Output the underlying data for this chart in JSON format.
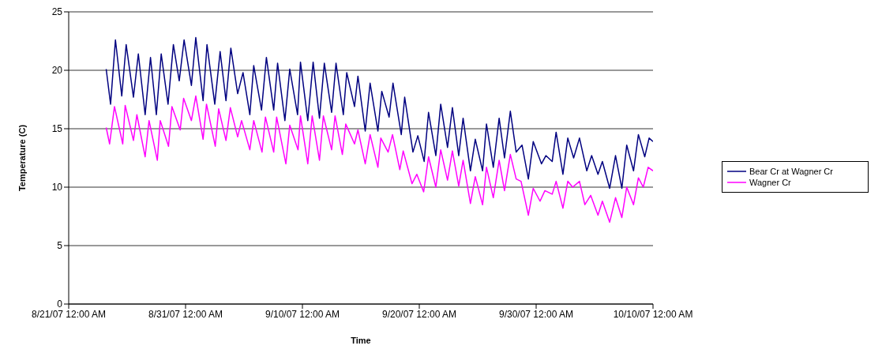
{
  "chart_data": {
    "type": "line",
    "xlabel": "Time",
    "ylabel": "Temperature (C)",
    "xlim": [
      "--08-21",
      "--10-10"
    ],
    "xticks": [
      {
        "value": "--08-21",
        "label": "8/21/07 12:00 AM"
      },
      {
        "value": "--08-31",
        "label": "8/31/07 12:00 AM"
      },
      {
        "value": "--09-10",
        "label": "9/10/07 12:00 AM"
      },
      {
        "value": "--09-20",
        "label": "9/20/07 12:00 AM"
      },
      {
        "value": "--09-30",
        "label": "9/30/07 12:00 AM"
      },
      {
        "value": "--10-10",
        "label": "10/10/07 12:00 AM"
      }
    ],
    "ylim": [
      0,
      25
    ],
    "yticks": [
      0,
      5,
      10,
      15,
      20,
      25
    ],
    "grid": "y",
    "legend": "right",
    "marker": "none",
    "line_style": "solid",
    "series": [
      {
        "name": "Bear Cr at Wagner Cr",
        "color": "#000080",
        "x": [
          "--08-24T05:00",
          "--08-24T14:00",
          "--08-25T00:00",
          "--08-25T13:00",
          "--08-25T22:00",
          "--08-26T13:00",
          "--08-26T23:00",
          "--08-27T13:00",
          "--08-28T00:00",
          "--08-28T12:00",
          "--08-28T22:00",
          "--08-29T12:00",
          "--08-29T23:00",
          "--08-30T11:00",
          "--08-30T21:00",
          "--08-31T12:00",
          "--08-31T21:00",
          "--09-01T12:00",
          "--09-01T20:00",
          "--09-02T12:00",
          "--09-02T23:00",
          "--09-03T11:00",
          "--09-03T21:00",
          "--09-04T11:00",
          "--09-04T22:00",
          "--09-05T12:00",
          "--09-05T20:00",
          "--09-06T12:00",
          "--09-06T22:00",
          "--09-07T13:00",
          "--09-07T21:00",
          "--09-08T12:00",
          "--09-08T22:00",
          "--09-09T14:00",
          "--09-09T20:00",
          "--09-10T11:00",
          "--09-10T22:00",
          "--09-11T11:00",
          "--09-11T21:00",
          "--09-12T12:00",
          "--09-12T21:00",
          "--09-13T12:00",
          "--09-13T19:00",
          "--09-14T11:00",
          "--09-14T18:00",
          "--09-15T09:00",
          "--09-15T19:00",
          "--09-16T11:00",
          "--09-16T19:00",
          "--09-17T10:00",
          "--09-17T18:00",
          "--09-18T11:00",
          "--09-18T18:00",
          "--09-19T11:00",
          "--09-19T21:00",
          "--09-20T10:00",
          "--09-20T19:00",
          "--09-21T10:00",
          "--09-21T20:00",
          "--09-22T10:00",
          "--09-22T20:00",
          "--09-23T09:00",
          "--09-23T18:00",
          "--09-24T09:00",
          "--09-24T19:00",
          "--09-25T10:00",
          "--09-25T18:00",
          "--09-26T08:00",
          "--09-26T20:00",
          "--09-27T07:00",
          "--09-27T19:00",
          "--09-28T07:00",
          "--09-28T19:00",
          "--09-29T08:00",
          "--09-29T18:00",
          "--09-30T11:00",
          "--09-30T20:00",
          "--10-01T09:00",
          "--10-01T17:00",
          "--10-02T07:00",
          "--10-02T17:00",
          "--10-03T05:00",
          "--10-03T17:00",
          "--10-04T08:00",
          "--10-04T18:00",
          "--10-05T07:00",
          "--10-05T16:00",
          "--10-06T07:00",
          "--10-06T19:00",
          "--10-07T08:00",
          "--10-07T18:00",
          "--10-08T08:00",
          "--10-08T18:00",
          "--10-09T07:00",
          "--10-09T16:00",
          "--10-10T00:00"
        ],
        "values": [
          20.1,
          17.1,
          22.6,
          17.8,
          22.2,
          17.7,
          21.4,
          16.2,
          21.1,
          16.2,
          21.4,
          17.1,
          22.2,
          19.1,
          22.6,
          18.7,
          22.8,
          17.4,
          22.2,
          17.1,
          21.6,
          17.4,
          21.9,
          18.0,
          19.8,
          16.2,
          20.4,
          16.6,
          21.1,
          16.6,
          20.6,
          15.7,
          20.1,
          16.2,
          20.7,
          15.7,
          20.7,
          15.9,
          20.6,
          16.4,
          20.6,
          16.2,
          19.8,
          16.9,
          19.5,
          14.8,
          18.9,
          14.8,
          18.2,
          16.0,
          18.9,
          14.5,
          17.7,
          13.0,
          14.4,
          12.2,
          16.4,
          12.7,
          17.1,
          13.4,
          16.8,
          12.7,
          15.9,
          11.4,
          14.1,
          11.4,
          15.4,
          11.7,
          15.9,
          12.5,
          16.5,
          13.0,
          13.6,
          10.7,
          13.9,
          12.0,
          12.7,
          12.2,
          14.7,
          11.1,
          14.2,
          12.5,
          14.2,
          11.4,
          12.7,
          11.1,
          12.2,
          9.9,
          12.7,
          9.9,
          13.6,
          11.4,
          14.5,
          12.6,
          14.2,
          13.9
        ]
      },
      {
        "name": "Wagner Cr",
        "color": "#ff00ff",
        "x": [
          "--08-24T05:00",
          "--08-24T12:00",
          "--08-24T22:00",
          "--08-25T15:00",
          "--08-25T20:00",
          "--08-26T13:00",
          "--08-26T20:00",
          "--08-27T13:00",
          "--08-27T21:00",
          "--08-28T14:00",
          "--08-28T20:00",
          "--08-29T13:00",
          "--08-29T20:00",
          "--08-30T13:00",
          "--08-30T20:00",
          "--08-31T12:00",
          "--08-31T21:00",
          "--09-01T12:00",
          "--09-01T19:00",
          "--09-02T13:00",
          "--09-02T20:00",
          "--09-03T11:00",
          "--09-03T20:00",
          "--09-04T11:00",
          "--09-04T19:00",
          "--09-05T12:00",
          "--09-05T20:00",
          "--09-06T13:00",
          "--09-06T20:00",
          "--09-07T13:00",
          "--09-07T19:00",
          "--09-08T14:00",
          "--09-08T22:00",
          "--09-09T15:00",
          "--09-09T20:00",
          "--09-10T11:00",
          "--09-10T20:00",
          "--09-11T11:00",
          "--09-11T19:00",
          "--09-12T12:00",
          "--09-12T19:00",
          "--09-13T10:00",
          "--09-13T17:00",
          "--09-14T11:00",
          "--09-14T18:00",
          "--09-15T09:00",
          "--09-15T19:00",
          "--09-16T11:00",
          "--09-16T17:00",
          "--09-17T08:00",
          "--09-17T17:00",
          "--09-18T08:00",
          "--09-18T15:00",
          "--09-19T09:00",
          "--09-19T19:00",
          "--09-20T09:00",
          "--09-20T19:00",
          "--09-21T10:00",
          "--09-21T20:00",
          "--09-22T10:00",
          "--09-22T20:00",
          "--09-23T09:00",
          "--09-23T18:00",
          "--09-24T09:00",
          "--09-24T19:00",
          "--09-25T10:00",
          "--09-25T18:00",
          "--09-26T08:00",
          "--09-26T20:00",
          "--09-27T07:00",
          "--09-27T19:00",
          "--09-28T07:00",
          "--09-28T17:00",
          "--09-29T08:00",
          "--09-29T18:00",
          "--09-30T08:00",
          "--09-30T18:00",
          "--10-01T09:00",
          "--10-01T17:00",
          "--10-02T07:00",
          "--10-02T17:00",
          "--10-03T03:00",
          "--10-03T17:00",
          "--10-04T04:00",
          "--10-04T16:00",
          "--10-05T07:00",
          "--10-05T16:00",
          "--10-06T07:00",
          "--10-06T19:00",
          "--10-07T08:00",
          "--10-07T18:00",
          "--10-08T08:00",
          "--10-08T18:00",
          "--10-09T04:00",
          "--10-09T14:00",
          "--10-10T00:00"
        ],
        "values": [
          15.1,
          13.7,
          16.9,
          13.7,
          17.0,
          14.0,
          16.2,
          12.6,
          15.7,
          12.3,
          15.7,
          13.5,
          16.9,
          14.9,
          17.6,
          15.7,
          17.8,
          14.1,
          17.1,
          13.5,
          16.7,
          14.0,
          16.8,
          14.3,
          15.7,
          13.2,
          15.7,
          13.0,
          16.0,
          13.0,
          16.0,
          12.0,
          15.3,
          13.2,
          16.1,
          12.0,
          16.1,
          12.3,
          16.1,
          13.2,
          16.1,
          12.8,
          15.4,
          13.7,
          14.9,
          12.0,
          14.5,
          11.7,
          14.2,
          13.0,
          14.5,
          11.5,
          13.1,
          10.3,
          11.1,
          9.6,
          12.6,
          10.0,
          13.2,
          10.6,
          13.1,
          10.1,
          12.3,
          8.6,
          10.9,
          8.5,
          11.7,
          9.1,
          12.3,
          9.7,
          12.8,
          10.7,
          10.5,
          7.6,
          9.9,
          8.8,
          9.7,
          9.4,
          10.5,
          8.2,
          10.5,
          10.0,
          10.5,
          8.5,
          9.3,
          7.6,
          8.8,
          7.0,
          9.1,
          7.4,
          10.0,
          8.5,
          10.8,
          10.0,
          11.7,
          11.4
        ]
      }
    ]
  }
}
